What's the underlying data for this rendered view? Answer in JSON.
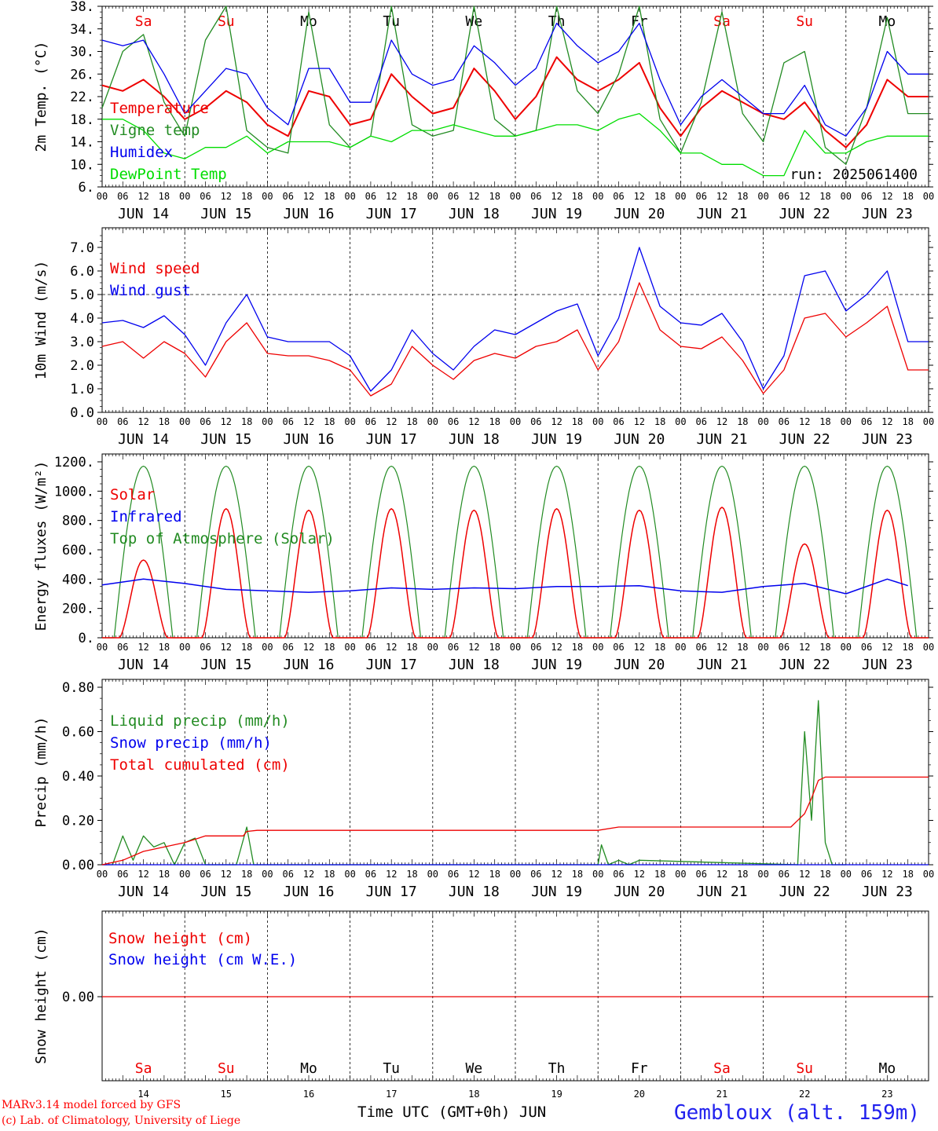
{
  "chart_data": [
    {
      "type": "line",
      "ylabel": "2m Temp. (°C)",
      "ylim": [
        6,
        38
      ],
      "yticks": [
        6,
        10,
        14,
        18,
        22,
        26,
        30,
        34,
        38
      ],
      "yticklabels": [
        "6.",
        "10.",
        "14.",
        "18.",
        "22.",
        "26.",
        "30.",
        "34.",
        "38."
      ],
      "x_unit": "hours since JUN 14 00 UTC",
      "legend": [
        "Temperature",
        "Vigne temp",
        "Humidex",
        "DewPoint Temp"
      ],
      "annotation": "run: 2025061400",
      "series": [
        {
          "name": "Temperature",
          "color": "#ee0000",
          "x": [
            0,
            6,
            12,
            18,
            24,
            30,
            36,
            42,
            48,
            54,
            60,
            66,
            72,
            78,
            84,
            90,
            96,
            102,
            108,
            114,
            120,
            126,
            132,
            138,
            144,
            150,
            156,
            162,
            168,
            174,
            180,
            186,
            192,
            198,
            204,
            210,
            216,
            222,
            228,
            234
          ],
          "values": [
            24,
            23,
            25,
            22,
            18,
            20,
            23,
            21,
            17,
            15,
            23,
            22,
            17,
            18,
            26,
            22,
            19,
            20,
            27,
            23,
            18,
            22,
            29,
            25,
            23,
            25,
            28,
            20,
            15,
            20,
            23,
            21,
            19,
            18,
            21,
            16,
            13,
            17,
            25,
            22
          ]
        },
        {
          "name": "Vigne temp",
          "color": "#228b22",
          "x": [
            0,
            6,
            12,
            18,
            24,
            30,
            36,
            42,
            48,
            54,
            60,
            66,
            72,
            78,
            84,
            90,
            96,
            102,
            108,
            114,
            120,
            126,
            132,
            138,
            144,
            150,
            156,
            162,
            168,
            174,
            180,
            186,
            192,
            198,
            204,
            210,
            216,
            222,
            228,
            234
          ],
          "values": [
            20,
            30,
            33,
            21,
            15,
            32,
            38,
            16,
            13,
            12,
            37,
            17,
            13,
            15,
            38,
            17,
            15,
            16,
            38,
            18,
            15,
            16,
            38,
            23,
            19,
            26,
            38,
            18,
            12,
            21,
            37,
            19,
            14,
            28,
            30,
            13,
            10,
            20,
            36,
            19
          ]
        },
        {
          "name": "Humidex",
          "color": "#0000ee",
          "x": [
            0,
            6,
            12,
            18,
            24,
            30,
            36,
            42,
            48,
            54,
            60,
            66,
            72,
            78,
            84,
            90,
            96,
            102,
            108,
            114,
            120,
            126,
            132,
            138,
            144,
            150,
            156,
            162,
            168,
            174,
            180,
            186,
            192,
            198,
            204,
            210,
            216,
            222,
            228,
            234
          ],
          "values": [
            32,
            31,
            32,
            26,
            19,
            23,
            27,
            26,
            20,
            17,
            27,
            27,
            21,
            21,
            32,
            26,
            24,
            25,
            31,
            28,
            24,
            27,
            35,
            31,
            28,
            30,
            35,
            25,
            17,
            22,
            25,
            22,
            19,
            19,
            24,
            17,
            15,
            20,
            30,
            26
          ]
        },
        {
          "name": "DewPoint Temp",
          "color": "#00dd00",
          "x": [
            0,
            6,
            12,
            18,
            24,
            30,
            36,
            42,
            48,
            54,
            60,
            66,
            72,
            78,
            84,
            90,
            96,
            102,
            108,
            114,
            120,
            126,
            132,
            138,
            144,
            150,
            156,
            162,
            168,
            174,
            180,
            186,
            192,
            198,
            204,
            210,
            216,
            222,
            228,
            234
          ],
          "values": [
            18,
            18,
            16,
            12,
            11,
            13,
            13,
            15,
            12,
            14,
            14,
            14,
            13,
            15,
            14,
            16,
            16,
            17,
            16,
            15,
            15,
            16,
            17,
            17,
            16,
            18,
            19,
            16,
            12,
            12,
            10,
            10,
            8,
            8,
            16,
            12,
            12,
            14,
            15,
            15
          ]
        }
      ]
    },
    {
      "type": "line",
      "ylabel": "10m Wind (m/s)",
      "ylim": [
        0,
        7.5
      ],
      "yticks": [
        0,
        1,
        2,
        3,
        4,
        5,
        6,
        7
      ],
      "yticklabels": [
        "0.0",
        "1.0",
        "2.0",
        "3.0",
        "4.0",
        "5.0",
        "6.0",
        "7.0"
      ],
      "reference_line": 5.0,
      "legend": [
        "Wind speed",
        "Wind gust"
      ],
      "series": [
        {
          "name": "Wind speed",
          "color": "#ee0000",
          "x": [
            0,
            6,
            12,
            18,
            24,
            30,
            36,
            42,
            48,
            54,
            60,
            66,
            72,
            78,
            84,
            90,
            96,
            102,
            108,
            114,
            120,
            126,
            132,
            138,
            144,
            150,
            156,
            162,
            168,
            174,
            180,
            186,
            192,
            198,
            204,
            210,
            216,
            222,
            228,
            234
          ],
          "values": [
            2.8,
            3.0,
            2.3,
            3.0,
            2.5,
            1.5,
            3.0,
            3.8,
            2.5,
            2.4,
            2.4,
            2.2,
            1.8,
            0.7,
            1.2,
            2.8,
            2.0,
            1.4,
            2.2,
            2.5,
            2.3,
            2.8,
            3.0,
            3.5,
            1.8,
            3.0,
            5.5,
            3.5,
            2.8,
            2.7,
            3.2,
            2.2,
            0.8,
            1.8,
            4.0,
            4.2,
            3.2,
            3.8,
            4.5,
            1.8
          ]
        },
        {
          "name": "Wind gust",
          "color": "#0000ee",
          "x": [
            0,
            6,
            12,
            18,
            24,
            30,
            36,
            42,
            48,
            54,
            60,
            66,
            72,
            78,
            84,
            90,
            96,
            102,
            108,
            114,
            120,
            126,
            132,
            138,
            144,
            150,
            156,
            162,
            168,
            174,
            180,
            186,
            192,
            198,
            204,
            210,
            216,
            222,
            228,
            234
          ],
          "values": [
            3.8,
            3.9,
            3.6,
            4.1,
            3.3,
            2.0,
            3.8,
            5.0,
            3.2,
            3.0,
            3.0,
            3.0,
            2.4,
            0.9,
            1.8,
            3.5,
            2.5,
            1.8,
            2.8,
            3.5,
            3.3,
            3.8,
            4.3,
            4.6,
            2.4,
            4.0,
            7.0,
            4.5,
            3.8,
            3.7,
            4.2,
            3.0,
            1.0,
            2.4,
            5.8,
            6.0,
            4.3,
            5.0,
            6.0,
            3.0
          ]
        }
      ]
    },
    {
      "type": "line",
      "ylabel": "Energy fluxes (W/m²)",
      "ylim": [
        0,
        1200
      ],
      "yticks": [
        0,
        200,
        400,
        600,
        800,
        1000,
        1200
      ],
      "yticklabels": [
        "0.",
        "200.",
        "400.",
        "600.",
        "800.",
        "1000.",
        "1200."
      ],
      "legend": [
        "Solar",
        "Infrared",
        "Top of Atmosphere (Solar)"
      ],
      "series": [
        {
          "name": "Solar",
          "color": "#ee0000",
          "peaks": [
            530,
            880,
            870,
            880,
            870,
            880,
            870,
            890,
            640,
            870
          ]
        },
        {
          "name": "Infrared",
          "color": "#0000ee",
          "x": [
            0,
            12,
            24,
            36,
            48,
            60,
            72,
            84,
            96,
            108,
            120,
            132,
            144,
            156,
            168,
            180,
            192,
            204,
            216,
            228,
            234
          ],
          "values": [
            360,
            400,
            370,
            330,
            320,
            310,
            320,
            340,
            330,
            340,
            335,
            350,
            350,
            355,
            320,
            310,
            350,
            370,
            300,
            400,
            355
          ]
        },
        {
          "name": "Top of Atmosphere (Solar)",
          "color": "#228b22",
          "peak": 1170
        }
      ]
    },
    {
      "type": "line",
      "ylabel": "Precip (mm/h)",
      "ylim": [
        0,
        0.8
      ],
      "yticks": [
        0,
        0.2,
        0.4,
        0.6,
        0.8
      ],
      "yticklabels": [
        "0.00",
        "0.20",
        "0.40",
        "0.60",
        "0.80"
      ],
      "legend": [
        "Liquid precip (mm/h)",
        "Snow precip (mm/h)",
        "Total cumulated (cm)"
      ],
      "series": [
        {
          "name": "Liquid precip (mm/h)",
          "color": "#228b22",
          "x": [
            0,
            3,
            6,
            9,
            12,
            15,
            18,
            21,
            24,
            27,
            30,
            33,
            39,
            42,
            44,
            46,
            48,
            144,
            145,
            147,
            150,
            153,
            156,
            202,
            204,
            206,
            208,
            210,
            212,
            214,
            216
          ],
          "values": [
            0,
            0,
            0.13,
            0.02,
            0.13,
            0.08,
            0.1,
            0,
            0.1,
            0.12,
            0,
            0,
            0,
            0.17,
            0,
            0,
            0,
            0,
            0.09,
            0,
            0.02,
            0,
            0.02,
            0,
            0.6,
            0.2,
            0.74,
            0.1,
            0,
            0,
            0
          ]
        },
        {
          "name": "Snow precip (mm/h)",
          "color": "#0000ee",
          "x": [
            0,
            240
          ],
          "values": [
            0,
            0
          ]
        },
        {
          "name": "Total cumulated (cm)",
          "color": "#ee0000",
          "x": [
            0,
            6,
            12,
            18,
            24,
            30,
            36,
            41,
            42,
            45,
            144,
            150,
            156,
            200,
            204,
            206,
            208,
            210,
            240
          ],
          "values": [
            0,
            0.02,
            0.06,
            0.08,
            0.1,
            0.13,
            0.13,
            0.13,
            0.15,
            0.155,
            0.155,
            0.17,
            0.17,
            0.17,
            0.23,
            0.3,
            0.38,
            0.395,
            0.395
          ]
        }
      ]
    },
    {
      "type": "line",
      "ylabel": "Snow height (cm)",
      "yticks": [
        0
      ],
      "yticklabels": [
        "0.00"
      ],
      "legend": [
        "Snow height (cm)",
        "Snow height (cm W.E.)"
      ],
      "series": [
        {
          "name": "Snow height (cm)",
          "color": "#ee0000",
          "x": [
            0,
            240
          ],
          "values": [
            0,
            0
          ]
        },
        {
          "name": "Snow height (cm W.E.)",
          "color": "#0000ee",
          "x": [
            0,
            240
          ],
          "values": [
            0,
            0
          ]
        }
      ]
    }
  ],
  "axis": {
    "days_top": [
      "Sa",
      "Su",
      "Mo",
      "Tu",
      "We",
      "Th",
      "Fr",
      "Sa",
      "Su",
      "Mo"
    ],
    "weekend_flags": [
      true,
      true,
      false,
      false,
      false,
      false,
      false,
      true,
      true,
      false
    ],
    "hour_labels": [
      "00",
      "06",
      "12",
      "18"
    ],
    "end_label": "00",
    "date_labels": [
      "JUN 14",
      "JUN 15",
      "JUN 16",
      "JUN 17",
      "JUN 18",
      "JUN 19",
      "JUN 20",
      "JUN 21",
      "JUN 22",
      "JUN 23"
    ],
    "day_numbers": [
      "14",
      "15",
      "16",
      "17",
      "18",
      "19",
      "20",
      "21",
      "22",
      "23"
    ]
  },
  "footer": {
    "credit1": "MARv3.14 model forced by GFS",
    "credit2": "(c) Lab. of Climatology, University of Liege",
    "xlabel": "Time UTC (GMT+0h) JUN",
    "station": "Gembloux (alt. 159m)"
  },
  "colors": {
    "red": "#ee0000",
    "green": "#228b22",
    "blue": "#0000ee",
    "lightgreen": "#00dd00",
    "weekend": "#ee0000",
    "weekday": "#000000"
  }
}
